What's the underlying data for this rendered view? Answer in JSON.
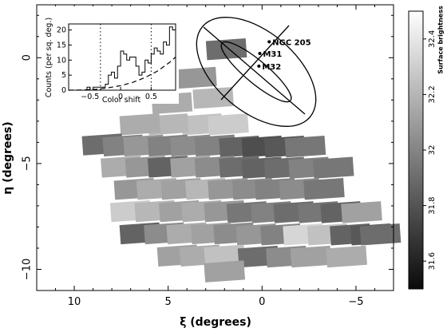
{
  "chart_data": [
    {
      "type": "heatmap",
      "title": "",
      "xlabel": "ξ (degrees)",
      "ylabel": "η (degrees)",
      "xlim": [
        12,
        -7
      ],
      "ylim": [
        -11,
        2.5
      ],
      "xticks": [
        10,
        5,
        0,
        -5
      ],
      "yticks": [
        0,
        -5,
        -10
      ],
      "colorbar": {
        "label": "Surface brightness",
        "ticks": [
          31.6,
          31.8,
          32,
          32.2,
          32.4
        ],
        "range": [
          31.5,
          32.5
        ]
      },
      "tiles": [
        {
          "x": 1.9,
          "y": 0.4,
          "v": 31.9
        },
        {
          "x": 3.5,
          "y": -0.95,
          "v": 32.1
        },
        {
          "x": 2.6,
          "y": -1.9,
          "v": 32.25
        },
        {
          "x": 4.8,
          "y": -2.15,
          "v": 32.2
        },
        {
          "x": 3.2,
          "y": -3.15,
          "v": 32.3
        },
        {
          "x": 1.8,
          "y": -3.15,
          "v": 32.35
        },
        {
          "x": 5.0,
          "y": -3.15,
          "v": 32.25
        },
        {
          "x": 6.5,
          "y": -3.15,
          "v": 32.2
        },
        {
          "x": 8.5,
          "y": -4.1,
          "v": 31.9
        },
        {
          "x": 7.4,
          "y": -4.15,
          "v": 32.0
        },
        {
          "x": 6.3,
          "y": -4.15,
          "v": 32.1
        },
        {
          "x": 5.0,
          "y": -4.15,
          "v": 32.0
        },
        {
          "x": 3.8,
          "y": -4.15,
          "v": 32.05
        },
        {
          "x": 2.5,
          "y": -4.15,
          "v": 32.0
        },
        {
          "x": 1.2,
          "y": -4.2,
          "v": 31.85
        },
        {
          "x": 0.0,
          "y": -4.2,
          "v": 31.75
        },
        {
          "x": -1.2,
          "y": -4.2,
          "v": 31.8
        },
        {
          "x": -2.3,
          "y": -4.2,
          "v": 31.95
        },
        {
          "x": 7.5,
          "y": -5.15,
          "v": 32.2
        },
        {
          "x": 6.2,
          "y": -5.15,
          "v": 32.1
        },
        {
          "x": 5.0,
          "y": -5.15,
          "v": 31.85
        },
        {
          "x": 3.8,
          "y": -5.15,
          "v": 32.15
        },
        {
          "x": 2.5,
          "y": -5.15,
          "v": 32.05
        },
        {
          "x": 1.2,
          "y": -5.15,
          "v": 31.9
        },
        {
          "x": 0.0,
          "y": -5.2,
          "v": 31.85
        },
        {
          "x": -1.2,
          "y": -5.2,
          "v": 31.9
        },
        {
          "x": -2.5,
          "y": -5.2,
          "v": 32.0
        },
        {
          "x": -3.8,
          "y": -5.2,
          "v": 31.95
        },
        {
          "x": 6.8,
          "y": -6.2,
          "v": 32.1
        },
        {
          "x": 5.6,
          "y": -6.2,
          "v": 32.2
        },
        {
          "x": 4.3,
          "y": -6.2,
          "v": 32.15
        },
        {
          "x": 3.0,
          "y": -6.2,
          "v": 32.25
        },
        {
          "x": 1.8,
          "y": -6.2,
          "v": 32.1
        },
        {
          "x": 0.5,
          "y": -6.2,
          "v": 32.05
        },
        {
          "x": -0.7,
          "y": -6.2,
          "v": 32.0
        },
        {
          "x": -2.0,
          "y": -6.2,
          "v": 32.05
        },
        {
          "x": -3.3,
          "y": -6.2,
          "v": 31.95
        },
        {
          "x": 7.0,
          "y": -7.25,
          "v": 32.35
        },
        {
          "x": 5.7,
          "y": -7.25,
          "v": 32.25
        },
        {
          "x": 4.4,
          "y": -7.25,
          "v": 32.15
        },
        {
          "x": 3.2,
          "y": -7.25,
          "v": 32.2
        },
        {
          "x": 2.0,
          "y": -7.25,
          "v": 32.1
        },
        {
          "x": 0.8,
          "y": -7.3,
          "v": 31.95
        },
        {
          "x": -0.5,
          "y": -7.3,
          "v": 32.0
        },
        {
          "x": -1.7,
          "y": -7.3,
          "v": 31.9
        },
        {
          "x": -3.0,
          "y": -7.3,
          "v": 31.95
        },
        {
          "x": -4.2,
          "y": -7.3,
          "v": 31.85
        },
        {
          "x": -5.3,
          "y": -7.3,
          "v": 32.15
        },
        {
          "x": 6.5,
          "y": -8.3,
          "v": 31.85
        },
        {
          "x": 5.2,
          "y": -8.3,
          "v": 32.05
        },
        {
          "x": 4.0,
          "y": -8.3,
          "v": 32.2
        },
        {
          "x": 2.7,
          "y": -8.3,
          "v": 32.15
        },
        {
          "x": 1.5,
          "y": -8.3,
          "v": 32.05
        },
        {
          "x": 0.3,
          "y": -8.35,
          "v": 32.1
        },
        {
          "x": -1.0,
          "y": -8.35,
          "v": 32.0
        },
        {
          "x": -2.2,
          "y": -8.35,
          "v": 32.4
        },
        {
          "x": -3.5,
          "y": -8.35,
          "v": 32.3
        },
        {
          "x": -4.7,
          "y": -8.35,
          "v": 31.85
        },
        {
          "x": -5.8,
          "y": -8.35,
          "v": 31.8
        },
        {
          "x": -6.3,
          "y": -8.35,
          "v": 31.9
        },
        {
          "x": 4.5,
          "y": -9.35,
          "v": 32.15
        },
        {
          "x": 3.3,
          "y": -9.35,
          "v": 32.2
        },
        {
          "x": 2.0,
          "y": -9.35,
          "v": 32.3
        },
        {
          "x": 0.2,
          "y": -9.4,
          "v": 31.9
        },
        {
          "x": -1.3,
          "y": -9.4,
          "v": 32.05
        },
        {
          "x": -2.6,
          "y": -9.4,
          "v": 32.15
        },
        {
          "x": -4.5,
          "y": -9.4,
          "v": 32.2
        },
        {
          "x": 2.0,
          "y": -10.1,
          "v": 32.15
        }
      ],
      "annotations": [
        {
          "text": "NGC 205",
          "x": -0.55,
          "y": 0.6
        },
        {
          "text": "M31",
          "x": -0.05,
          "y": 0.05
        },
        {
          "text": "M32",
          "x": 0.0,
          "y": -0.55
        }
      ]
    },
    {
      "type": "line",
      "xlabel": "Color shift",
      "ylabel": "Counts (per sq. deg.)",
      "xlim": [
        -0.85,
        0.9
      ],
      "ylim": [
        0,
        22
      ],
      "xticks": [
        -0.5,
        0,
        0.5
      ],
      "yticks": [
        0,
        5,
        10,
        15,
        20
      ],
      "vlines": [
        -0.33,
        0.5
      ],
      "series": [
        {
          "style": "step",
          "x": [
            -0.85,
            -0.8,
            -0.75,
            -0.7,
            -0.65,
            -0.6,
            -0.55,
            -0.5,
            -0.45,
            -0.4,
            -0.35,
            -0.3,
            -0.25,
            -0.2,
            -0.15,
            -0.1,
            -0.05,
            0,
            0.05,
            0.1,
            0.15,
            0.2,
            0.25,
            0.3,
            0.35,
            0.4,
            0.45,
            0.5,
            0.55,
            0.6,
            0.65,
            0.7,
            0.75,
            0.8,
            0.85
          ],
          "y": [
            0,
            0,
            0,
            0,
            0,
            0,
            1,
            0,
            1,
            1,
            1,
            1,
            2,
            5,
            6,
            4,
            8,
            13,
            12,
            10,
            11,
            11,
            8,
            5,
            6,
            10,
            9,
            12,
            14,
            13,
            12,
            16,
            15,
            21,
            20
          ]
        },
        {
          "style": "dashed",
          "x": [
            -0.85,
            -0.6,
            -0.4,
            -0.2,
            0,
            0.2,
            0.4,
            0.6,
            0.8,
            0.9
          ],
          "y": [
            0,
            0.1,
            0.3,
            0.8,
            1.5,
            2.6,
            4.2,
            6.3,
            9.2,
            11
          ]
        }
      ]
    }
  ]
}
